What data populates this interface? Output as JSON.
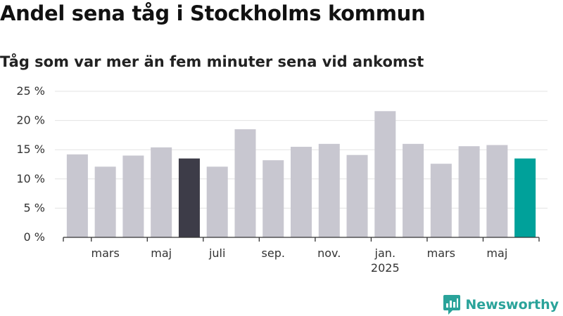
{
  "title": "Andel sena tåg i Stockholms kommun",
  "subtitle": "Tåg som var mer än fem minuter sena vid ankomst",
  "brand": {
    "name": "Newsworthy",
    "color": "#2aa39a"
  },
  "colors": {
    "bar": "#c8c7d0",
    "highlight_dark": "#3d3c48",
    "highlight_accent": "#00a19a",
    "grid": "#e3e3e3",
    "axis": "#333333"
  },
  "chart_data": {
    "type": "bar",
    "title": "Andel sena tåg i Stockholms kommun",
    "subtitle": "Tåg som var mer än fem minuter sena vid ankomst",
    "xlabel": "",
    "ylabel": "",
    "ylim": [
      0,
      25
    ],
    "yticks": [
      0,
      5,
      10,
      15,
      20,
      25
    ],
    "ytick_labels": [
      "0 %",
      "5 %",
      "10 %",
      "15 %",
      "20 %",
      "25 %"
    ],
    "grid": true,
    "categories": [
      "2024-02",
      "2024-03",
      "2024-04",
      "2024-05",
      "2024-06",
      "2024-07",
      "2024-08",
      "2024-09",
      "2024-10",
      "2024-11",
      "2024-12",
      "2025-01",
      "2025-02",
      "2025-03",
      "2025-04",
      "2025-05",
      "2025-06"
    ],
    "values": [
      14.2,
      12.1,
      14.0,
      15.4,
      13.5,
      12.1,
      18.5,
      13.2,
      15.5,
      16.0,
      14.1,
      21.6,
      16.0,
      12.6,
      15.6,
      15.8,
      13.5
    ],
    "highlight": {
      "2024-06": "dark",
      "2025-06": "accent"
    },
    "xticks": [
      {
        "index": 1,
        "label": "mars",
        "sublabel": ""
      },
      {
        "index": 3,
        "label": "maj",
        "sublabel": ""
      },
      {
        "index": 5,
        "label": "juli",
        "sublabel": ""
      },
      {
        "index": 7,
        "label": "sep.",
        "sublabel": ""
      },
      {
        "index": 9,
        "label": "nov.",
        "sublabel": ""
      },
      {
        "index": 11,
        "label": "jan.",
        "sublabel": "2025"
      },
      {
        "index": 13,
        "label": "mars",
        "sublabel": ""
      },
      {
        "index": 15,
        "label": "maj",
        "sublabel": ""
      }
    ]
  }
}
